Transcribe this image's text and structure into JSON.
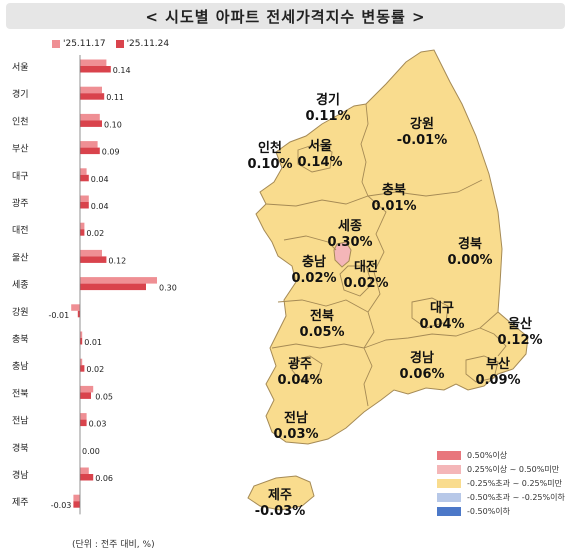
{
  "title": "< 시도별 아파트 전세가격지수 변동률 >",
  "unit_note": "(단위 : 전주 대비, %)",
  "colors": {
    "prev": "#ef8f94",
    "curr": "#d9434c",
    "map_fill": "#f9dc8e",
    "map_sejong": "#f4b6b8",
    "map_stroke": "#a58a55"
  },
  "chart_data": {
    "type": "bar",
    "orientation": "horizontal",
    "categories": [
      "서울",
      "경기",
      "인천",
      "부산",
      "대구",
      "광주",
      "대전",
      "울산",
      "세종",
      "강원",
      "충북",
      "충남",
      "전북",
      "전남",
      "경북",
      "경남",
      "제주"
    ],
    "series": [
      {
        "name": "'25.11.17",
        "values": [
          0.12,
          0.1,
          0.09,
          0.08,
          0.03,
          0.04,
          0.02,
          0.1,
          0.35,
          -0.04,
          0.01,
          0.01,
          0.06,
          0.03,
          0.0,
          0.04,
          -0.03
        ]
      },
      {
        "name": "'25.11.24",
        "values": [
          0.14,
          0.11,
          0.1,
          0.09,
          0.04,
          0.04,
          0.02,
          0.12,
          0.3,
          -0.01,
          0.01,
          0.02,
          0.05,
          0.03,
          0.0,
          0.06,
          -0.03
        ]
      }
    ],
    "data_labels": [
      "0.14",
      "0.11",
      "0.10",
      "0.09",
      "0.04",
      "0.04",
      "0.02",
      "0.12",
      "0.30",
      "-0.01",
      "0.01",
      "0.02",
      "0.05",
      "0.03",
      "0.00",
      "0.06",
      "-0.03"
    ],
    "xlim": [
      -0.06,
      0.36
    ],
    "grid": false,
    "legend_position": "top-left"
  },
  "map": {
    "regions": [
      {
        "key": "gyeonggi",
        "name": "경기",
        "value": "0.11%"
      },
      {
        "key": "gangwon",
        "name": "강원",
        "value": "-0.01%"
      },
      {
        "key": "incheon",
        "name": "인천",
        "value": "0.10%"
      },
      {
        "key": "seoul",
        "name": "서울",
        "value": "0.14%"
      },
      {
        "key": "chungbuk",
        "name": "충북",
        "value": "0.01%"
      },
      {
        "key": "sejong",
        "name": "세종",
        "value": "0.30%"
      },
      {
        "key": "gyeongbuk",
        "name": "경북",
        "value": "0.00%"
      },
      {
        "key": "chungnam",
        "name": "충남",
        "value": "0.02%"
      },
      {
        "key": "daejeon",
        "name": "대전",
        "value": "0.02%"
      },
      {
        "key": "daegu",
        "name": "대구",
        "value": "0.04%"
      },
      {
        "key": "ulsan",
        "name": "울산",
        "value": "0.12%"
      },
      {
        "key": "jeonbuk",
        "name": "전북",
        "value": "0.05%"
      },
      {
        "key": "gwangju",
        "name": "광주",
        "value": "0.04%"
      },
      {
        "key": "gyeongnam",
        "name": "경남",
        "value": "0.06%"
      },
      {
        "key": "busan",
        "name": "부산",
        "value": "0.09%"
      },
      {
        "key": "jeonnam",
        "name": "전남",
        "value": "0.03%"
      },
      {
        "key": "jeju",
        "name": "제주",
        "value": "-0.03%"
      }
    ],
    "legend": [
      {
        "label": "0.50%이상",
        "color": "#e8767c"
      },
      {
        "label": "0.25%이상 ~ 0.50%미만",
        "color": "#f4b6b8"
      },
      {
        "label": "-0.25%초과 ~ 0.25%미만",
        "color": "#f9dc8e"
      },
      {
        "label": "-0.50%초과 ~ -0.25%이하",
        "color": "#b7c8e8"
      },
      {
        "label": "-0.50%이하",
        "color": "#4c78c8"
      }
    ]
  }
}
